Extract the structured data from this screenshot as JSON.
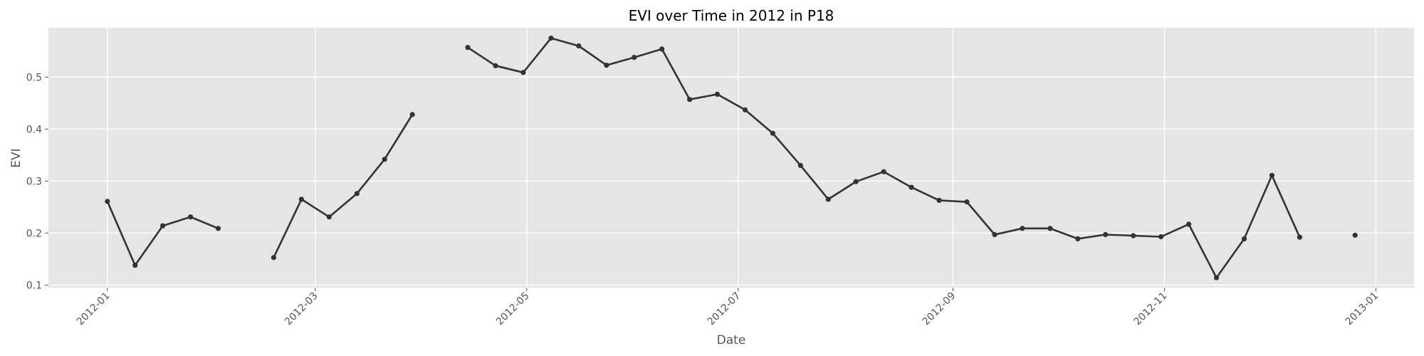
{
  "chart_data": {
    "type": "line",
    "title": "EVI over Time in 2012 in P18",
    "xlabel": "Date",
    "ylabel": "EVI",
    "x_ticks": [
      "2012-01",
      "2012-03",
      "2012-05",
      "2012-07",
      "2012-09",
      "2012-11",
      "2013-01"
    ],
    "y_ticks": [
      "0.1",
      "0.2",
      "0.3",
      "0.4",
      "0.5"
    ],
    "xlim": [
      "2011-12-15",
      "2013-01-12"
    ],
    "ylim": [
      0.095,
      0.595
    ],
    "grid": true,
    "colors": {
      "background": "#e5e5e5",
      "grid": "#ffffff",
      "line": "#333333"
    },
    "series": [
      {
        "x": [
          "2012-01-01",
          "2012-01-09",
          "2012-01-17",
          "2012-01-25",
          "2012-02-02",
          null,
          "2012-02-18",
          "2012-02-26",
          "2012-03-05",
          "2012-03-13",
          "2012-03-21",
          "2012-03-29",
          null,
          "2012-04-14",
          "2012-04-22",
          "2012-04-30",
          "2012-05-08",
          "2012-05-16",
          "2012-05-24",
          "2012-06-01",
          "2012-06-09",
          "2012-06-17",
          "2012-06-25",
          "2012-07-03",
          "2012-07-11",
          "2012-07-19",
          "2012-07-27",
          "2012-08-04",
          "2012-08-12",
          "2012-08-20",
          "2012-08-28",
          "2012-09-05",
          "2012-09-13",
          "2012-09-21",
          "2012-09-29",
          "2012-10-07",
          "2012-10-15",
          "2012-10-23",
          "2012-10-31",
          "2012-11-08",
          "2012-11-16",
          "2012-11-24",
          "2012-12-02",
          "2012-12-10",
          null,
          "2012-12-26"
        ],
        "y": [
          0.261,
          0.138,
          0.214,
          0.231,
          0.209,
          null,
          0.153,
          0.265,
          0.231,
          0.276,
          0.342,
          0.428,
          null,
          0.557,
          0.522,
          0.509,
          0.575,
          0.56,
          0.523,
          0.538,
          0.554,
          0.457,
          0.467,
          0.437,
          0.392,
          0.33,
          0.265,
          0.299,
          0.318,
          0.288,
          0.263,
          0.26,
          0.197,
          0.209,
          0.209,
          0.189,
          0.197,
          0.195,
          0.193,
          0.217,
          0.114,
          0.189,
          0.311,
          0.192,
          null,
          0.196
        ]
      }
    ]
  }
}
